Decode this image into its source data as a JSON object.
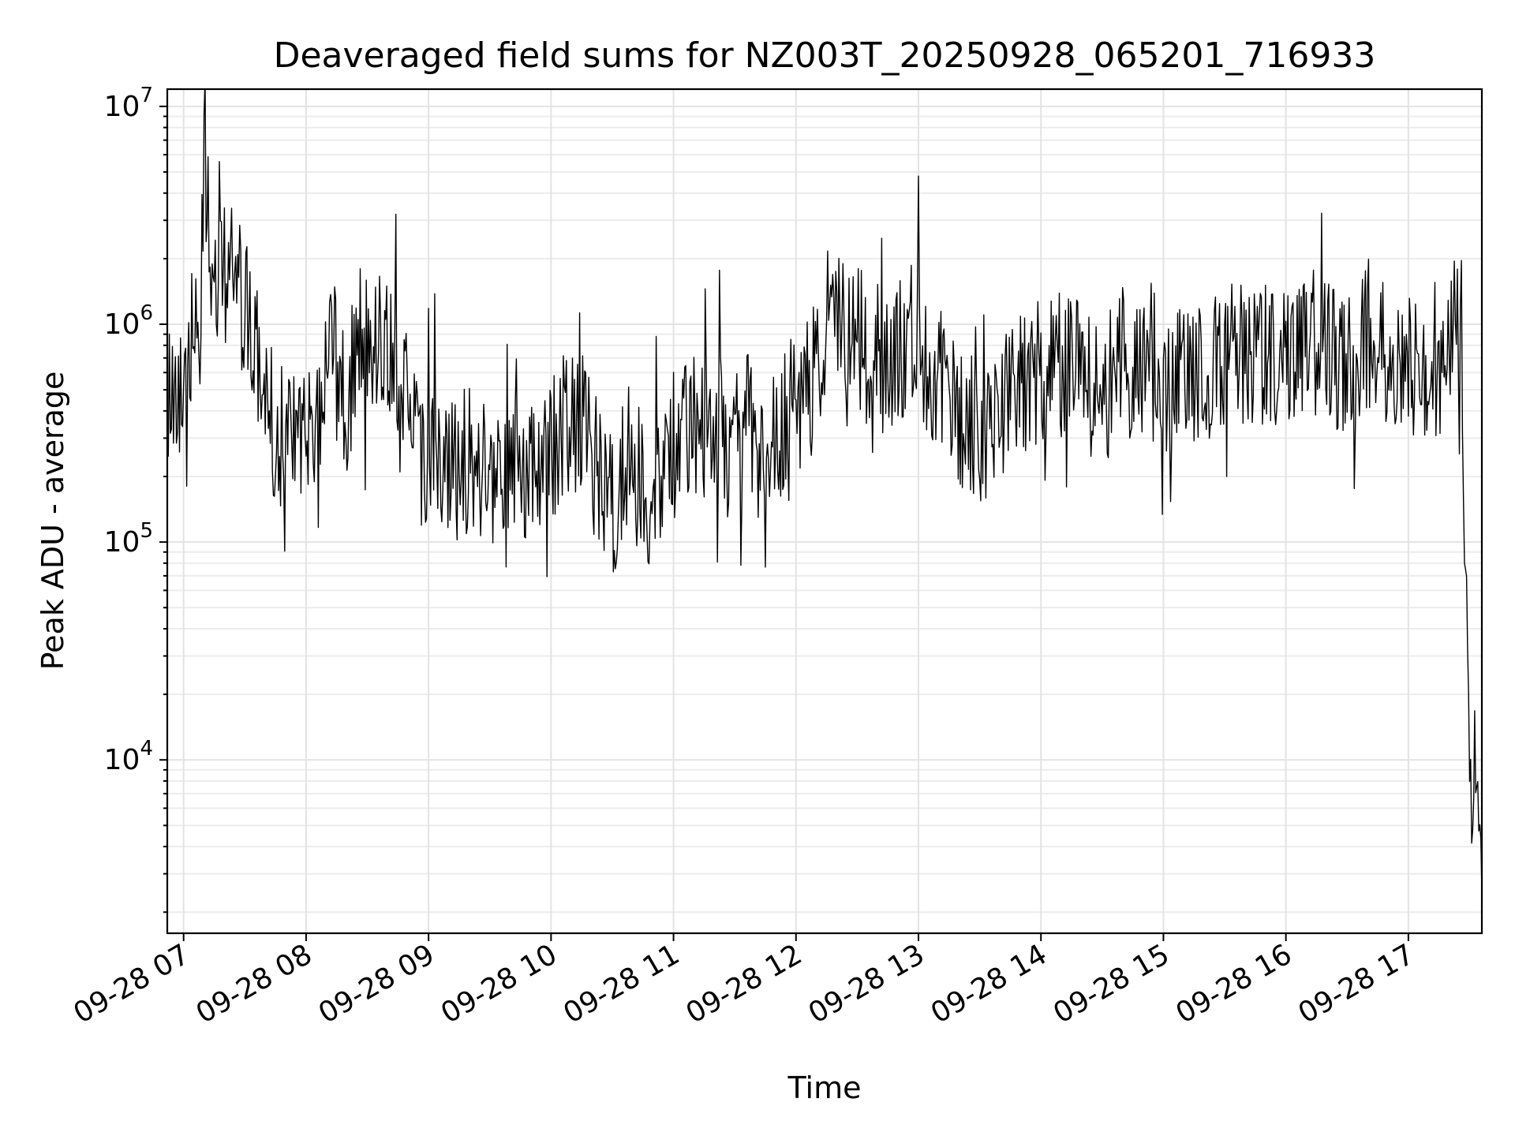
{
  "chart_data": {
    "type": "line",
    "title": "Deaveraged field sums for NZ003T_20250928_065201_716933",
    "xlabel": "Time",
    "ylabel": "Peak ADU - average",
    "yscale": "log",
    "ylim": [
      1600,
      12000000
    ],
    "xlim": [
      "2025-09-28 06:52",
      "2025-09-28 17:36"
    ],
    "grid": true,
    "x_ticks": [
      {
        "value": "2025-09-28 07:00",
        "label": "09-28 07"
      },
      {
        "value": "2025-09-28 08:00",
        "label": "09-28 08"
      },
      {
        "value": "2025-09-28 09:00",
        "label": "09-28 09"
      },
      {
        "value": "2025-09-28 10:00",
        "label": "09-28 10"
      },
      {
        "value": "2025-09-28 11:00",
        "label": "09-28 11"
      },
      {
        "value": "2025-09-28 12:00",
        "label": "09-28 12"
      },
      {
        "value": "2025-09-28 13:00",
        "label": "09-28 13"
      },
      {
        "value": "2025-09-28 14:00",
        "label": "09-28 14"
      },
      {
        "value": "2025-09-28 15:00",
        "label": "09-28 15"
      },
      {
        "value": "2025-09-28 16:00",
        "label": "09-28 16"
      },
      {
        "value": "2025-09-28 17:00",
        "label": "09-28 17"
      }
    ],
    "y_ticks": [
      {
        "value": 10000,
        "base": "10",
        "exp": "4"
      },
      {
        "value": 100000,
        "base": "10",
        "exp": "5"
      },
      {
        "value": 1000000,
        "base": "10",
        "exp": "6"
      },
      {
        "value": 10000000,
        "base": "10",
        "exp": "7"
      }
    ],
    "series": [
      {
        "color": "#000000",
        "x": [
          "2025-09-28 06:52",
          "2025-09-28 06:56",
          "2025-09-28 07:00",
          "2025-09-28 07:04",
          "2025-09-28 07:08",
          "2025-09-28 07:10",
          "2025-09-28 07:14",
          "2025-09-28 07:20",
          "2025-09-28 07:26",
          "2025-09-28 07:32",
          "2025-09-28 07:38",
          "2025-09-28 07:44",
          "2025-09-28 07:50",
          "2025-09-28 07:56",
          "2025-09-28 08:02",
          "2025-09-28 08:08",
          "2025-09-28 08:14",
          "2025-09-28 08:20",
          "2025-09-28 08:26",
          "2025-09-28 08:32",
          "2025-09-28 08:38",
          "2025-09-28 08:44",
          "2025-09-28 08:50",
          "2025-09-28 08:56",
          "2025-09-28 09:04",
          "2025-09-28 09:12",
          "2025-09-28 09:20",
          "2025-09-28 09:28",
          "2025-09-28 09:36",
          "2025-09-28 09:44",
          "2025-09-28 09:52",
          "2025-09-28 10:00",
          "2025-09-28 10:08",
          "2025-09-28 10:16",
          "2025-09-28 10:24",
          "2025-09-28 10:32",
          "2025-09-28 10:40",
          "2025-09-28 10:48",
          "2025-09-28 10:56",
          "2025-09-28 11:04",
          "2025-09-28 11:12",
          "2025-09-28 11:20",
          "2025-09-28 11:28",
          "2025-09-28 11:36",
          "2025-09-28 11:44",
          "2025-09-28 11:52",
          "2025-09-28 12:00",
          "2025-09-28 12:08",
          "2025-09-28 12:16",
          "2025-09-28 12:24",
          "2025-09-28 12:32",
          "2025-09-28 12:40",
          "2025-09-28 12:48",
          "2025-09-28 12:56",
          "2025-09-28 13:04",
          "2025-09-28 13:12",
          "2025-09-28 13:20",
          "2025-09-28 13:28",
          "2025-09-28 13:36",
          "2025-09-28 13:44",
          "2025-09-28 13:52",
          "2025-09-28 14:00",
          "2025-09-28 14:08",
          "2025-09-28 14:16",
          "2025-09-28 14:24",
          "2025-09-28 14:32",
          "2025-09-28 14:40",
          "2025-09-28 14:48",
          "2025-09-28 14:56",
          "2025-09-28 15:04",
          "2025-09-28 15:12",
          "2025-09-28 15:20",
          "2025-09-28 15:28",
          "2025-09-28 15:36",
          "2025-09-28 15:44",
          "2025-09-28 15:52",
          "2025-09-28 16:00",
          "2025-09-28 16:08",
          "2025-09-28 16:16",
          "2025-09-28 16:24",
          "2025-09-28 16:32",
          "2025-09-28 16:40",
          "2025-09-28 16:48",
          "2025-09-28 16:56",
          "2025-09-28 17:04",
          "2025-09-28 17:12",
          "2025-09-28 17:18",
          "2025-09-28 17:22",
          "2025-09-28 17:26",
          "2025-09-28 17:28",
          "2025-09-28 17:30",
          "2025-09-28 17:32",
          "2025-09-28 17:34",
          "2025-09-28 17:36"
        ],
        "y": [
          550000,
          500000,
          600000,
          800000,
          700000,
          6000000,
          1200000,
          1800000,
          1500000,
          1000000,
          600000,
          350000,
          300000,
          250000,
          350000,
          500000,
          700000,
          350000,
          1000000,
          800000,
          900000,
          600000,
          400000,
          200000,
          300000,
          200000,
          250000,
          200000,
          180000,
          220000,
          200000,
          250000,
          350000,
          300000,
          200000,
          150000,
          280000,
          130000,
          250000,
          300000,
          350000,
          300000,
          250000,
          350000,
          250000,
          300000,
          450000,
          550000,
          900000,
          1000000,
          800000,
          700000,
          650000,
          900000,
          700000,
          500000,
          400000,
          350000,
          300000,
          450000,
          550000,
          600000,
          650000,
          600000,
          550000,
          500000,
          700000,
          600000,
          550000,
          500000,
          650000,
          600000,
          700000,
          750000,
          650000,
          700000,
          750000,
          800000,
          850000,
          700000,
          650000,
          900000,
          750000,
          700000,
          600000,
          550000,
          500000,
          1300000,
          900000,
          100000,
          12000,
          5000,
          8000,
          2500
        ]
      }
    ]
  }
}
